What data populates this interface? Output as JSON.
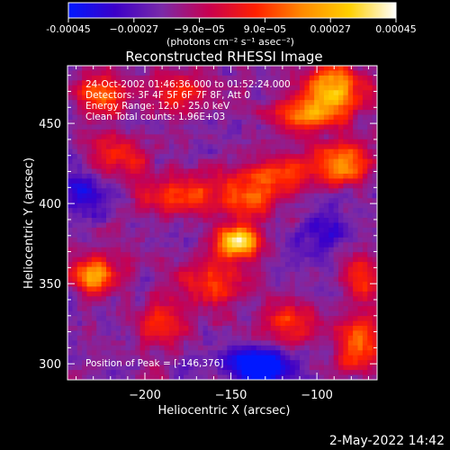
{
  "chart_data": {
    "type": "heatmap",
    "title": "Reconstructed RHESSI Image",
    "xlabel": "Heliocentric X (arcsec)",
    "ylabel": "Heliocentric Y (arcsec)",
    "xlim": [
      -245,
      -65
    ],
    "ylim": [
      290,
      486
    ],
    "xticks": [
      -200,
      -150,
      -100
    ],
    "xtick_labels": [
      "−200",
      "−150",
      "−100"
    ],
    "yticks": [
      300,
      350,
      400,
      450
    ],
    "ytick_labels": [
      "300",
      "350",
      "400",
      "450"
    ],
    "colorbar": {
      "range": [
        -0.00045,
        0.00045
      ],
      "ticks": [
        -0.00045,
        -0.00027,
        -9e-05,
        9e-05,
        0.00027,
        0.00045
      ],
      "tick_labels": [
        "-0.00045",
        "−0.00027",
        "−9.0e−05",
        "9.0e−05",
        "0.00027",
        "0.00045"
      ],
      "unit_label": "(photons cm⁻² s⁻¹ asec⁻²)",
      "colormap": [
        "#0018ff",
        "#3c00c8",
        "#7a2aa8",
        "#c80050",
        "#ff2000",
        "#ff8a00",
        "#ffd000",
        "#ffffff"
      ]
    },
    "annotations": [
      "24-Oct-2002 01:46:36.000 to 01:52:24.000",
      "Detectors: 3F 4F 5F 6F 7F 8F, Att 0",
      "Energy Range: 12.0 - 25.0 keV",
      "Clean     Total counts: 1.96E+03"
    ],
    "peak_label": "Position of Peak = [-146,376]",
    "peak": [
      -146,
      376
    ],
    "sources": [
      {
        "x": -146,
        "y": 376,
        "amp": 1.0,
        "sx": 9,
        "sy": 7
      },
      {
        "x": -140,
        "y": 405,
        "amp": 0.55,
        "sx": 14,
        "sy": 10
      },
      {
        "x": -90,
        "y": 470,
        "amp": 0.85,
        "sx": 12,
        "sy": 12
      },
      {
        "x": -110,
        "y": 455,
        "amp": 0.55,
        "sx": 12,
        "sy": 8
      },
      {
        "x": -225,
        "y": 468,
        "amp": 0.65,
        "sx": 10,
        "sy": 8
      },
      {
        "x": -180,
        "y": 470,
        "amp": 0.4,
        "sx": 14,
        "sy": 8
      },
      {
        "x": -85,
        "y": 425,
        "amp": 0.7,
        "sx": 12,
        "sy": 9
      },
      {
        "x": -120,
        "y": 420,
        "amp": 0.45,
        "sx": 12,
        "sy": 8
      },
      {
        "x": -180,
        "y": 405,
        "amp": 0.45,
        "sx": 16,
        "sy": 10
      },
      {
        "x": -230,
        "y": 355,
        "amp": 0.75,
        "sx": 9,
        "sy": 8
      },
      {
        "x": -190,
        "y": 325,
        "amp": 0.45,
        "sx": 10,
        "sy": 9
      },
      {
        "x": -115,
        "y": 325,
        "amp": 0.5,
        "sx": 12,
        "sy": 9
      },
      {
        "x": -75,
        "y": 310,
        "amp": 0.6,
        "sx": 9,
        "sy": 12
      },
      {
        "x": -75,
        "y": 355,
        "amp": 0.45,
        "sx": 8,
        "sy": 12
      },
      {
        "x": -160,
        "y": 350,
        "amp": 0.45,
        "sx": 14,
        "sy": 10
      },
      {
        "x": -215,
        "y": 430,
        "amp": 0.4,
        "sx": 12,
        "sy": 10
      },
      {
        "x": -135,
        "y": 298,
        "amp": -0.75,
        "sx": 12,
        "sy": 8
      },
      {
        "x": -235,
        "y": 405,
        "amp": -0.35,
        "sx": 10,
        "sy": 10
      },
      {
        "x": -95,
        "y": 380,
        "amp": -0.3,
        "sx": 12,
        "sy": 12
      }
    ]
  },
  "footer": {
    "timestamp": "2-May-2022 14:42"
  }
}
